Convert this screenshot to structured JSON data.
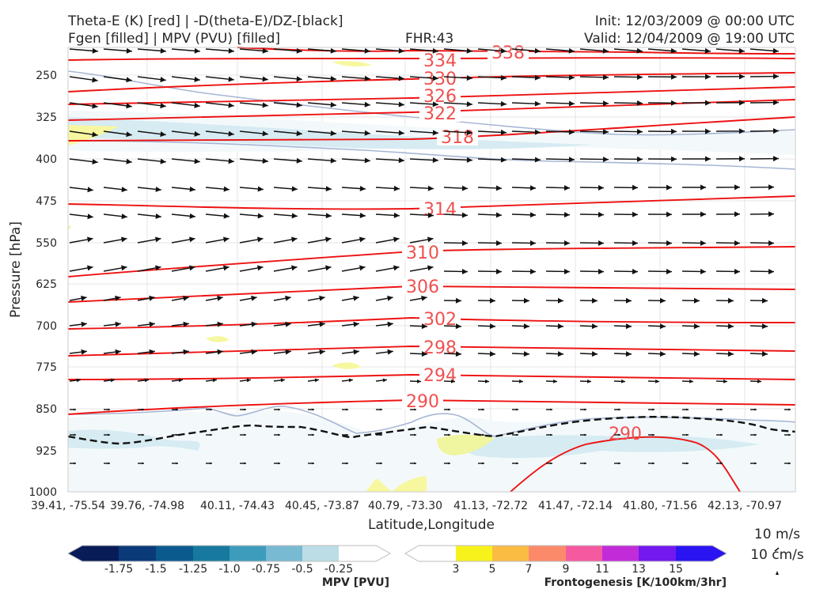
{
  "header": {
    "title_left_1": "Theta-E (K) [red] | -D(theta-E)/DZ-[black]",
    "title_left_2": "Fgen [filled] | MPV (PVU) [filled]",
    "fhr": "FHR:43",
    "init": "Init: 12/03/2009 @ 00:00 UTC",
    "valid": "Valid: 12/04/2009 @ 19:00 UTC"
  },
  "chart_data": {
    "type": "cross-section",
    "ylabel": "Pressure [hPa]",
    "xlabel": "Latitude,Longitude",
    "yticks": [
      "250",
      "325",
      "400",
      "475",
      "550",
      "625",
      "700",
      "775",
      "850",
      "925",
      "1000"
    ],
    "ylim": [
      1000,
      180
    ],
    "xticks": [
      "39.41, -75.54",
      "39.76, -74.98",
      "40.11, -74.43",
      "40.45, -73.87",
      "40.79, -73.30",
      "41.13, -72.72",
      "41.47, -72.14",
      "41.80, -71.56",
      "42.13, -70.97"
    ],
    "theta_e_contour_labels": [
      "338",
      "334",
      "330",
      "326",
      "322",
      "318",
      "314",
      "310",
      "306",
      "302",
      "298",
      "294",
      "290",
      "290"
    ],
    "contour_color": "#ee1111",
    "vector_color": "#111111",
    "mpv_colorbar": {
      "title": "MPV [PVU]",
      "ticks": [
        "-1.75",
        "-1.5",
        "-1.25",
        "-1.0",
        "-0.75",
        "-0.5",
        "-0.25"
      ],
      "colors": [
        "#081d58",
        "#0a3a78",
        "#0b5a8e",
        "#17799f",
        "#3d9cbc",
        "#78bad2",
        "#bcdde6",
        "#ffffff"
      ]
    },
    "fgen_colorbar": {
      "title": "Frontogenesis [K/100km/3hr]",
      "ticks": [
        "3",
        "5",
        "7",
        "9",
        "11",
        "13",
        "15"
      ],
      "colors": [
        "#ffffff",
        "#f8f21c",
        "#fbbc44",
        "#fb8a6a",
        "#f55aa0",
        "#c12cd8",
        "#7418f0",
        "#2a14f2"
      ]
    },
    "vector_reference": {
      "horizontal": "10 m/s",
      "vertical": "10 cm/s"
    }
  }
}
